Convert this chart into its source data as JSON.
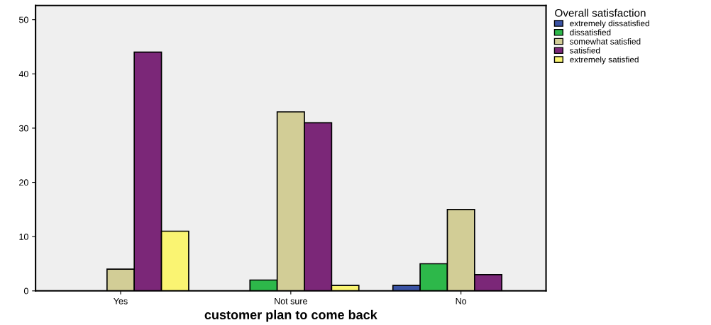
{
  "chart_data": {
    "type": "bar",
    "xlabel": "customer plan to come back",
    "legend_title": "Overall satisfaction",
    "categories": [
      "Yes",
      "Not sure",
      "No"
    ],
    "series": [
      {
        "name": "extremely dissatisfied",
        "color": "#3a53a4",
        "values": [
          null,
          null,
          1
        ]
      },
      {
        "name": "dissatisfied",
        "color": "#2db84a",
        "values": [
          null,
          2,
          5
        ]
      },
      {
        "name": "somewhat satisfied",
        "color": "#d2cd96",
        "values": [
          4,
          33,
          15
        ]
      },
      {
        "name": "satisfied",
        "color": "#7b2778",
        "values": [
          44,
          31,
          3
        ]
      },
      {
        "name": "extremely satisfied",
        "color": "#faf472",
        "values": [
          11,
          1,
          null
        ]
      }
    ],
    "ylim": [
      0,
      52.6
    ],
    "yticks": [
      0,
      10,
      20,
      30,
      40,
      50
    ],
    "grid": false,
    "legend": "top right"
  }
}
